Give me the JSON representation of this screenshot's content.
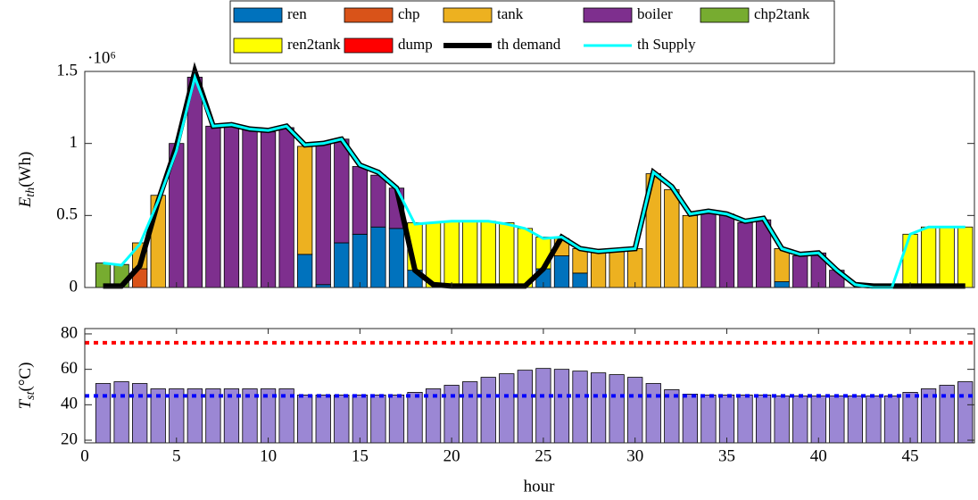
{
  "chart_data": [
    {
      "type": "bar",
      "stacked": true,
      "legend": "top-center",
      "y_exponent_label": "·10⁶",
      "ylabel": {
        "main": "E",
        "sub": "th",
        "rest": "(Wh)"
      },
      "x": [
        1,
        2,
        3,
        4,
        5,
        6,
        7,
        8,
        9,
        10,
        11,
        12,
        13,
        14,
        15,
        16,
        17,
        18,
        19,
        20,
        21,
        22,
        23,
        24,
        25,
        26,
        27,
        28,
        29,
        30,
        31,
        32,
        33,
        34,
        35,
        36,
        37,
        38,
        39,
        40,
        41,
        42,
        43,
        44,
        45,
        46,
        47,
        48
      ],
      "xlim": [
        0,
        48.5
      ],
      "ylim": [
        0,
        1.5
      ],
      "yticks": [
        0,
        0.5,
        1,
        1.5
      ],
      "series": [
        {
          "name": "ren",
          "type": "bar",
          "color": "#0072bd",
          "values": [
            0,
            0,
            0,
            0,
            0,
            0,
            0,
            0,
            0,
            0,
            0,
            0.23,
            0.02,
            0.31,
            0.37,
            0.42,
            0.41,
            0.12,
            0,
            0,
            0,
            0,
            0,
            0,
            0.13,
            0.22,
            0.1,
            0,
            0,
            0,
            0,
            0,
            0,
            0,
            0,
            0,
            0,
            0.04,
            0,
            0,
            0,
            0,
            0,
            0,
            0,
            0,
            0,
            0
          ]
        },
        {
          "name": "chp",
          "type": "bar",
          "color": "#d95319",
          "values": [
            0,
            0,
            0.13,
            0,
            0,
            0,
            0,
            0,
            0,
            0,
            0,
            0,
            0,
            0,
            0,
            0,
            0,
            0,
            0,
            0,
            0,
            0,
            0,
            0,
            0,
            0,
            0,
            0,
            0,
            0,
            0,
            0,
            0,
            0,
            0,
            0,
            0,
            0,
            0,
            0,
            0,
            0,
            0,
            0,
            0,
            0,
            0,
            0
          ]
        },
        {
          "name": "tank",
          "type": "bar",
          "color": "#edb120",
          "values": [
            0,
            0,
            0.18,
            0.64,
            0,
            0,
            0,
            0,
            0,
            0,
            0,
            0.75,
            0,
            0,
            0,
            0,
            0,
            0,
            0,
            0,
            0,
            0,
            0,
            0,
            0,
            0.12,
            0.17,
            0.25,
            0.26,
            0.27,
            0.79,
            0.68,
            0.5,
            0,
            0,
            0,
            0,
            0.23,
            0,
            0,
            0,
            0,
            0,
            0,
            0,
            0,
            0,
            0
          ]
        },
        {
          "name": "boiler",
          "type": "bar",
          "color": "#7e2f8e",
          "values": [
            0,
            0,
            0,
            0,
            1.0,
            1.46,
            1.12,
            1.13,
            1.1,
            1.08,
            1.11,
            0,
            0.98,
            0.72,
            0.47,
            0.36,
            0.28,
            0,
            0,
            0,
            0,
            0,
            0,
            0,
            0,
            0,
            0,
            0,
            0,
            0,
            0,
            0,
            0,
            0.52,
            0.51,
            0.45,
            0.47,
            0,
            0.22,
            0.24,
            0.12,
            0,
            0,
            0,
            0,
            0,
            0,
            0
          ]
        },
        {
          "name": "chp2tank",
          "type": "bar",
          "color": "#77ac30",
          "values": [
            0.17,
            0.16,
            0,
            0,
            0,
            0,
            0,
            0,
            0,
            0,
            0,
            0,
            0,
            0,
            0,
            0,
            0,
            0,
            0,
            0,
            0,
            0,
            0,
            0,
            0,
            0,
            0,
            0,
            0,
            0,
            0,
            0,
            0,
            0,
            0,
            0,
            0,
            0,
            0,
            0,
            0,
            0,
            0,
            0,
            0,
            0,
            0,
            0
          ]
        },
        {
          "name": "ren2tank",
          "type": "bar",
          "color": "#ffff00",
          "values": [
            0,
            0,
            0,
            0,
            0,
            0,
            0,
            0,
            0,
            0,
            0,
            0,
            0,
            0,
            0,
            0,
            0,
            0.33,
            0.45,
            0.46,
            0.46,
            0.46,
            0.45,
            0.41,
            0.22,
            0,
            0,
            0,
            0,
            0,
            0,
            0,
            0,
            0,
            0,
            0,
            0,
            0,
            0,
            0,
            0,
            0,
            0,
            0,
            0.37,
            0.42,
            0.42,
            0.42
          ]
        },
        {
          "name": "dump",
          "type": "bar",
          "color": "#ff0000",
          "values": [
            0,
            0,
            0,
            0,
            0,
            0,
            0,
            0,
            0,
            0,
            0,
            0,
            0,
            0,
            0,
            0,
            0,
            0,
            0,
            0,
            0,
            0,
            0,
            0,
            0,
            0,
            0,
            0,
            0,
            0,
            0,
            0,
            0,
            0,
            0,
            0,
            0,
            0,
            0,
            0,
            0,
            0,
            0,
            0,
            0,
            0,
            0,
            0
          ]
        },
        {
          "name": "th demand",
          "type": "line",
          "width": 6,
          "color": "#000000",
          "values": [
            0.01,
            0.01,
            0.15,
            0.6,
            0.98,
            1.5,
            1.12,
            1.13,
            1.1,
            1.09,
            1.12,
            0.99,
            1.0,
            1.03,
            0.85,
            0.8,
            0.69,
            0.12,
            0.02,
            0.01,
            0.01,
            0.01,
            0.01,
            0.01,
            0.13,
            0.35,
            0.27,
            0.25,
            0.26,
            0.27,
            0.8,
            0.7,
            0.51,
            0.53,
            0.51,
            0.46,
            0.48,
            0.27,
            0.23,
            0.24,
            0.12,
            0.02,
            0.01,
            0.01,
            0.01,
            0.01,
            0.01,
            0.01
          ]
        },
        {
          "name": "th Supply",
          "type": "line",
          "width": 3,
          "color": "#00ffff",
          "values": [
            0.17,
            0.155,
            0.3,
            0.6,
            0.95,
            1.46,
            1.12,
            1.13,
            1.1,
            1.09,
            1.12,
            0.99,
            1.0,
            1.03,
            0.85,
            0.8,
            0.69,
            0.44,
            0.45,
            0.46,
            0.46,
            0.46,
            0.44,
            0.41,
            0.34,
            0.35,
            0.27,
            0.25,
            0.26,
            0.27,
            0.8,
            0.7,
            0.51,
            0.53,
            0.51,
            0.46,
            0.48,
            0.27,
            0.23,
            0.24,
            0.12,
            0.02,
            0.0,
            0.0,
            0.37,
            0.42,
            0.42,
            0.42
          ]
        }
      ]
    },
    {
      "type": "bar",
      "ylabel": {
        "main": "T",
        "sub": "st",
        "rest": "(°C)"
      },
      "xlabel": "hour",
      "x": [
        1,
        2,
        3,
        4,
        5,
        6,
        7,
        8,
        9,
        10,
        11,
        12,
        13,
        14,
        15,
        16,
        17,
        18,
        19,
        20,
        21,
        22,
        23,
        24,
        25,
        26,
        27,
        28,
        29,
        30,
        31,
        32,
        33,
        34,
        35,
        36,
        37,
        38,
        39,
        40,
        41,
        42,
        43,
        44,
        45,
        46,
        47,
        48
      ],
      "values": [
        52,
        53,
        52,
        49,
        49,
        49,
        49,
        49,
        49,
        49,
        49,
        45.5,
        45.5,
        45.5,
        45.5,
        45.5,
        45.5,
        47,
        49,
        51,
        53,
        55.5,
        57.5,
        59.5,
        60.5,
        60,
        59,
        58,
        57,
        55.5,
        52,
        48.5,
        46,
        45.5,
        45.5,
        45.5,
        45.5,
        45,
        45,
        45,
        45,
        45,
        45,
        45,
        47,
        49,
        51,
        53
      ],
      "color": "#9b87d4",
      "xlim": [
        0,
        48.5
      ],
      "xticks": [
        0,
        5,
        10,
        15,
        20,
        25,
        30,
        35,
        40,
        45
      ],
      "ylim": [
        18.5,
        83
      ],
      "yticks": [
        20,
        40,
        60,
        80
      ],
      "reference_lines": [
        {
          "value": 75,
          "color": "#ff0000"
        },
        {
          "value": 45,
          "color": "#0000ff"
        }
      ]
    }
  ]
}
